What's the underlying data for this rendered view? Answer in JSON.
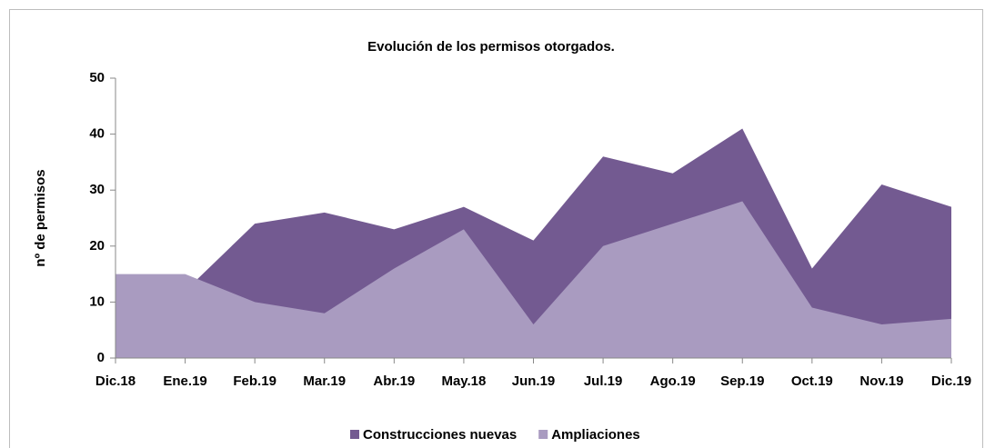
{
  "chart_data": {
    "type": "area",
    "title": "Evolución de los permisos otorgados.",
    "y_label": "nº de permisos",
    "categories": [
      "Dic.18",
      "Ene.19",
      "Feb.19",
      "Mar.19",
      "Abr.19",
      "May.18",
      "Jun.19",
      "Jul.19",
      "Ago.19",
      "Sep.19",
      "Oct.19",
      "Nov.19",
      "Dic.19"
    ],
    "series": [
      {
        "name": "Construcciones nuevas",
        "color": "#735a91",
        "values": [
          12,
          12,
          24,
          26,
          23,
          27,
          21,
          36,
          33,
          41,
          16,
          31,
          27
        ]
      },
      {
        "name": "Ampliaciones",
        "color": "#a99bc0",
        "values": [
          15,
          15,
          10,
          8,
          16,
          23,
          6,
          20,
          24,
          28,
          9,
          6,
          7
        ]
      }
    ],
    "ylim": [
      0,
      50
    ],
    "yticks": [
      0,
      10,
      20,
      30,
      40,
      50
    ],
    "stacked": false,
    "legend": "bottom"
  }
}
